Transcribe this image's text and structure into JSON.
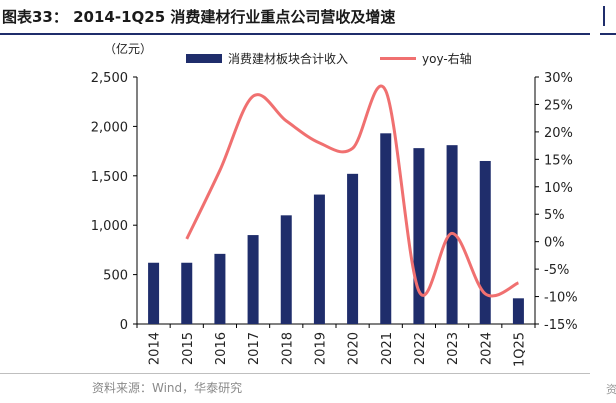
{
  "title": "图表33： 2014-1Q25 消费建材行业重点公司营收及增速",
  "source": "资料来源：Wind，华泰研究",
  "corner_mark": "资",
  "colors": {
    "bar": "#1f2d6b",
    "line": "#f07070",
    "rule": "#1f2d6b"
  },
  "chart_data": {
    "type": "bar",
    "unit_label": "（亿元）",
    "categories": [
      "2014",
      "2015",
      "2016",
      "2017",
      "2018",
      "2019",
      "2020",
      "2021",
      "2022",
      "2023",
      "2024",
      "1Q25"
    ],
    "series": [
      {
        "name": "消费建材板块合计收入",
        "type": "bar",
        "axis": "left",
        "values": [
          620,
          620,
          710,
          900,
          1100,
          1310,
          1520,
          1930,
          1780,
          1810,
          1650,
          260
        ]
      },
      {
        "name": "yoy-右轴",
        "type": "line",
        "axis": "right",
        "values": [
          null,
          0.5,
          13,
          26.5,
          22,
          18,
          17,
          27.5,
          -9,
          1.5,
          -9.5,
          -7.5
        ]
      }
    ],
    "left_axis": {
      "min": 0,
      "max": 2500,
      "ticks": [
        "0",
        "500",
        "1,000",
        "1,500",
        "2,000",
        "2,500"
      ]
    },
    "right_axis": {
      "min": -15,
      "max": 30,
      "ticks": [
        "-15%",
        "-10%",
        "-5%",
        "0%",
        "5%",
        "10%",
        "15%",
        "20%",
        "25%",
        "30%"
      ]
    },
    "legend_position": "top",
    "grid": false
  }
}
